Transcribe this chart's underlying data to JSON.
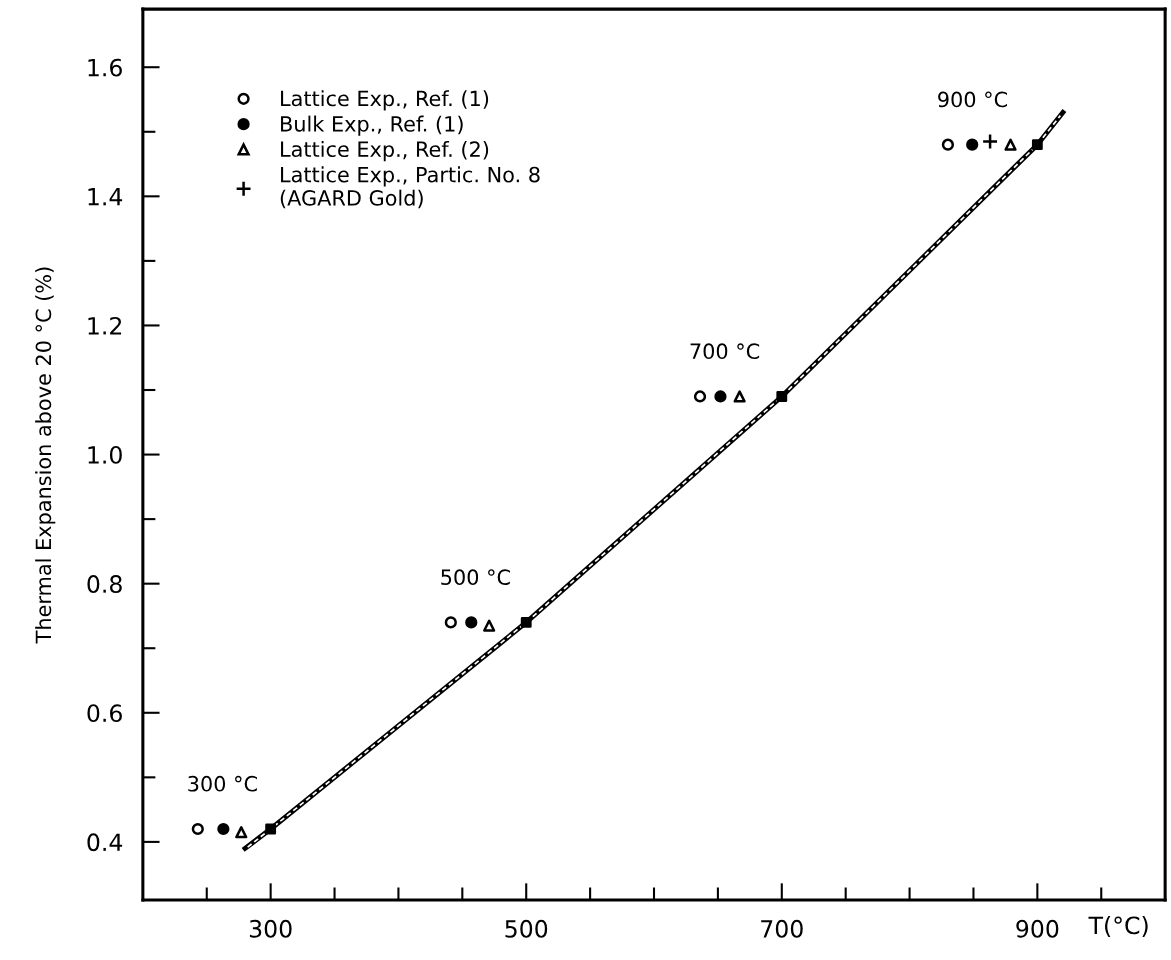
{
  "chart_data": {
    "type": "scatter",
    "xlabel": "T(°C)",
    "ylabel": "Thermal Expansion above 20 °C (%)",
    "xlim": [
      200,
      1000
    ],
    "ylim": [
      0.31,
      1.69
    ],
    "xticks": [
      {
        "value": 250,
        "label": null
      },
      300,
      {
        "value": 350,
        "label": null
      },
      {
        "value": 400,
        "label": null
      },
      {
        "value": 450,
        "label": null
      },
      500,
      {
        "value": 550,
        "label": null
      },
      {
        "value": 600,
        "label": null
      },
      {
        "value": 650,
        "label": null
      },
      700,
      {
        "value": 750,
        "label": null
      },
      {
        "value": 800,
        "label": null
      },
      {
        "value": 850,
        "label": null
      },
      900,
      {
        "value": 950,
        "label": null
      }
    ],
    "yticks": [
      0.4,
      {
        "value": 0.5,
        "label": null
      },
      0.6,
      {
        "value": 0.7,
        "label": null
      },
      0.8,
      {
        "value": 0.9,
        "label": null
      },
      {
        "value": 1.0,
        "label": "1.0"
      },
      {
        "value": 1.1,
        "label": null
      },
      1.2,
      {
        "value": 1.3,
        "label": null
      },
      1.4,
      {
        "value": 1.5,
        "label": null
      },
      1.6
    ],
    "grid": false,
    "legend": "top left",
    "series": [
      {
        "type": "line",
        "color": "#000000",
        "line_style": "solid",
        "marker": "none",
        "x": [
          280,
          300,
          500,
          700,
          900,
          920
        ],
        "values": [
          0.39,
          0.42,
          0.74,
          1.09,
          1.48,
          1.53
        ]
      },
      {
        "type": "line",
        "color": "#ffffff",
        "line_style": "dashed",
        "marker": "none",
        "x": [
          282,
          300,
          500,
          700,
          900,
          918
        ],
        "values": [
          0.392,
          0.42,
          0.74,
          1.09,
          1.48,
          1.525
        ]
      },
      {
        "color": "#000000",
        "marker": "square",
        "x": [
          300,
          500,
          700,
          900
        ],
        "values": [
          0.42,
          0.74,
          1.09,
          1.48
        ]
      },
      {
        "name": "Lattice Exp., Ref. (1)",
        "color": "#ffffff",
        "marker": "circle",
        "x": [
          243,
          441,
          636,
          830
        ],
        "values": [
          0.42,
          0.74,
          1.09,
          1.48
        ]
      },
      {
        "name": "Bulk Exp., Ref. (1)",
        "color": "#000000",
        "marker": "circle",
        "x": [
          263,
          457,
          652,
          849
        ],
        "values": [
          0.42,
          0.74,
          1.09,
          1.48
        ]
      },
      {
        "name": "Lattice Exp., Ref. (2)",
        "color": "#ffffff",
        "marker": "triangle",
        "x": [
          277,
          471,
          667,
          879
        ],
        "values": [
          0.415,
          0.735,
          1.09,
          1.48
        ]
      },
      {
        "name": "Lattice Exp., Partic. No. 8\n(AGARD Gold)",
        "color": "#000000",
        "marker": "cross",
        "x": [
          863
        ],
        "values": [
          1.485
        ]
      }
    ],
    "annotations": [
      {
        "text": "300 °C",
        "x": 243,
        "y": 0.42
      },
      {
        "text": "500 °C",
        "x": 441,
        "y": 0.74
      },
      {
        "text": "700 °C",
        "x": 636,
        "y": 1.09
      },
      {
        "text": "900 °C",
        "x": 830,
        "y": 1.48
      }
    ]
  }
}
